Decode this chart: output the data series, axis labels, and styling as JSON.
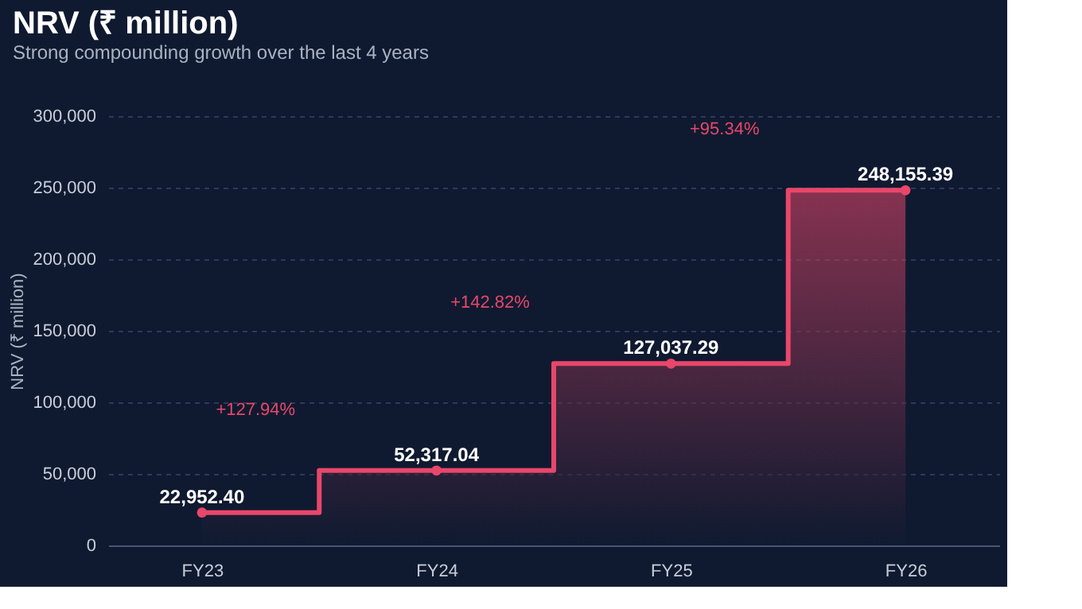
{
  "chart_data": {
    "type": "step",
    "title": "NRV (₹ million)",
    "subtitle": "Strong compounding growth over the last 4 years",
    "ylabel": "NRV (₹ million)",
    "categories": [
      "FY23",
      "FY24",
      "FY25",
      "FY26"
    ],
    "series": [
      {
        "type": "area",
        "color": "#e8476a",
        "values": [
          22952.4,
          52317.04,
          127037.29,
          248155.39
        ]
      }
    ],
    "value_labels": [
      "22,952.40",
      "52,317.04",
      "127,037.29",
      "248,155.39"
    ],
    "annotations": [
      "+127.94%",
      "+142.82%",
      "+95.34%"
    ],
    "ylim": [
      0,
      300000
    ],
    "yticks": [
      0,
      {
        "value": 50000,
        "label": "50,000"
      },
      {
        "value": 100000,
        "label": "100,000"
      },
      {
        "value": 150000,
        "label": "150,000"
      },
      {
        "value": 200000,
        "label": "200,000"
      },
      {
        "value": 250000,
        "label": "250,000"
      },
      {
        "value": 300000,
        "label": "300,000"
      }
    ],
    "grid": "y",
    "marker": "circle",
    "line_style": "solid"
  }
}
